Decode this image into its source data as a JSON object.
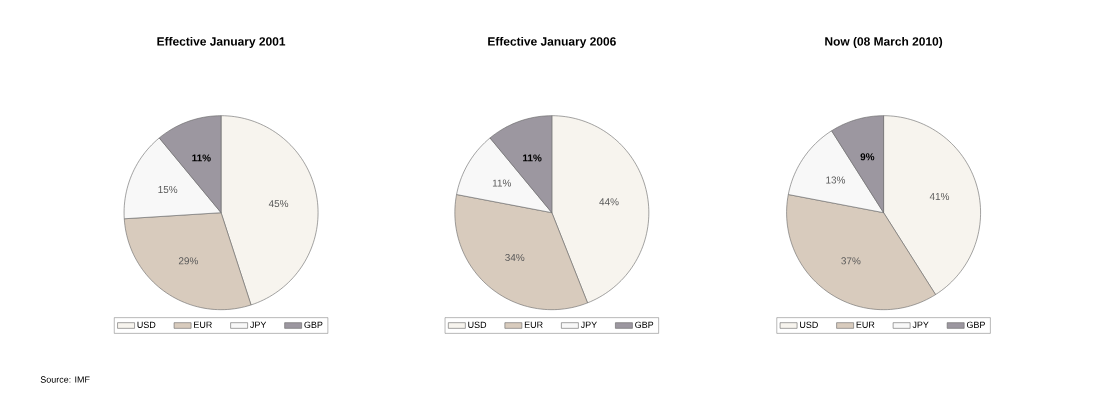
{
  "chart_data": [
    {
      "type": "pie",
      "title": "Effective January 2001",
      "categories": [
        "USD",
        "EUR",
        "JPY",
        "GBP"
      ],
      "values": [
        45,
        29,
        15,
        11
      ],
      "value_labels": [
        "45%",
        "29%",
        "15%",
        "11%"
      ],
      "colors": [
        "#f7f4ee",
        "#d8cbbd",
        "#f8f8f8",
        "#9c97a0"
      ],
      "legend": "bottom",
      "annotations": [
        "Source: IMF"
      ]
    },
    {
      "type": "pie",
      "title": "Effective January 2006",
      "categories": [
        "USD",
        "EUR",
        "JPY",
        "GBP"
      ],
      "values": [
        44,
        34,
        11,
        11
      ],
      "value_labels": [
        "44%",
        "34%",
        "11%",
        "11%"
      ],
      "colors": [
        "#f7f4ee",
        "#d8cbbd",
        "#f8f8f8",
        "#9c97a0"
      ],
      "legend": "bottom"
    },
    {
      "type": "pie",
      "title": "Now (08 March 2010)",
      "categories": [
        "USD",
        "EUR",
        "JPY",
        "GBP"
      ],
      "values": [
        41,
        37,
        13,
        9
      ],
      "value_labels": [
        "41%",
        "37%",
        "13%",
        "9%"
      ],
      "colors": [
        "#f7f4ee",
        "#d8cbbd",
        "#f8f8f8",
        "#9c97a0"
      ],
      "legend": "bottom"
    }
  ]
}
